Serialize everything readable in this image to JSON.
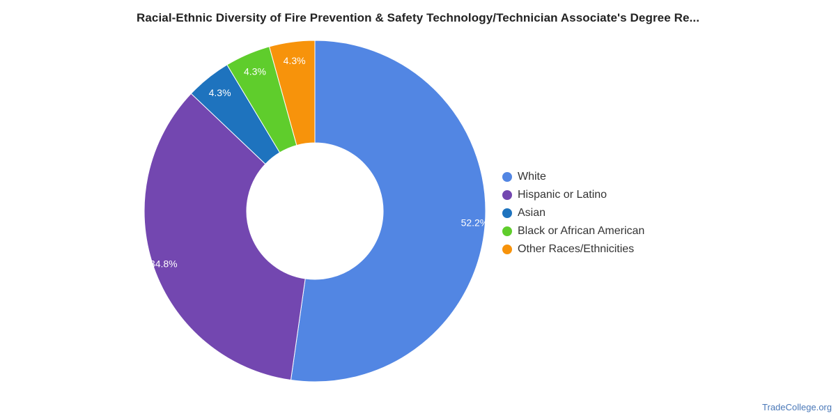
{
  "chart_data": {
    "type": "pie",
    "title": "Racial-Ethnic Diversity of Fire Prevention & Safety Technology/Technician Associate's Degree Re...",
    "donut": true,
    "legend_position": "right",
    "slices": [
      {
        "label": "White",
        "value": 52.2,
        "value_label": "52.2%",
        "color": "#5286e3"
      },
      {
        "label": "Hispanic or Latino",
        "value": 34.8,
        "value_label": "34.8%",
        "color": "#7347b0"
      },
      {
        "label": "Asian",
        "value": 4.3,
        "value_label": "4.3%",
        "color": "#1e73be"
      },
      {
        "label": "Black or African American",
        "value": 4.3,
        "value_label": "4.3%",
        "color": "#5fcd2c"
      },
      {
        "label": "Other Races/Ethnicities",
        "value": 4.3,
        "value_label": "4.3%",
        "color": "#f7930b"
      }
    ]
  },
  "watermark": "TradeCollege.org"
}
